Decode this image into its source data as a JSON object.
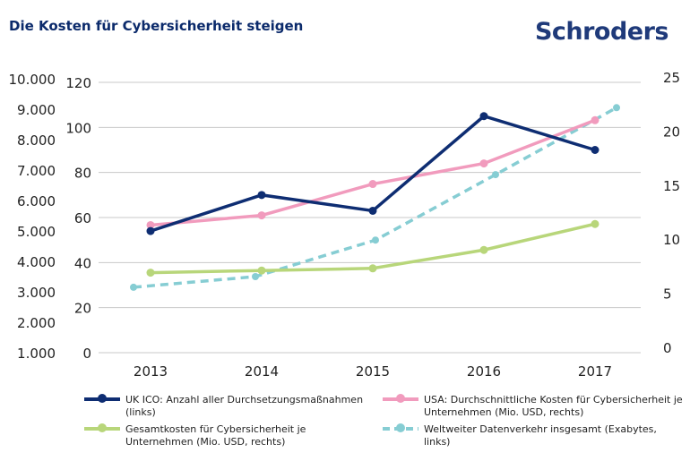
{
  "title": "Die Kosten für Cybersicherheit steigen",
  "logo": "Schroders",
  "chart_data": {
    "type": "line",
    "categories": [
      "2013",
      "2014",
      "2015",
      "2016",
      "2017"
    ],
    "axes": {
      "left_outer": {
        "ticks": [
          "1.000",
          "2.000",
          "3.000",
          "4.000",
          "5.000",
          "6.000",
          "7.000",
          "8.000",
          "9.000",
          "10.000"
        ],
        "range": [
          1000,
          10000
        ]
      },
      "left_inner": {
        "ticks": [
          "0",
          "20",
          "40",
          "60",
          "80",
          "100",
          "120"
        ],
        "range": [
          0,
          120
        ]
      },
      "right": {
        "ticks": [
          "0",
          "5",
          "10",
          "15",
          "20",
          "25"
        ],
        "range": [
          0,
          25
        ]
      }
    },
    "grid": true,
    "legend_placement": "bottom",
    "series": [
      {
        "name": "UK ICO: Anzahl aller Durchsetzungsmaßnahmen (links)",
        "axis": "left_inner",
        "color": "#0e2d72",
        "dashed": false,
        "values": [
          54,
          70,
          63,
          105,
          90
        ]
      },
      {
        "name": "USA: Durchschnittliche Kosten für Cybersicherheit je Unternehmen (Mio. USD, rechts)",
        "axis": "right",
        "color": "#f19bbd",
        "dashed": false,
        "values": [
          11.8,
          12.7,
          15.6,
          17.5,
          21.5
        ]
      },
      {
        "name": "Gesamtkosten für Cybersicherheit je Unternehmen (Mio. USD, rechts)",
        "axis": "right",
        "color": "#b8d67a",
        "dashed": false,
        "values": [
          7.4,
          7.6,
          7.8,
          9.5,
          11.9
        ]
      },
      {
        "name": "Weltweiter Datenverkehr insgesamt (Exabytes, links)",
        "axis": "left_outer",
        "color": "#86cdd3",
        "dashed": true,
        "values": [
          3150,
          3500,
          4700,
          6850,
          9050
        ]
      }
    ]
  }
}
